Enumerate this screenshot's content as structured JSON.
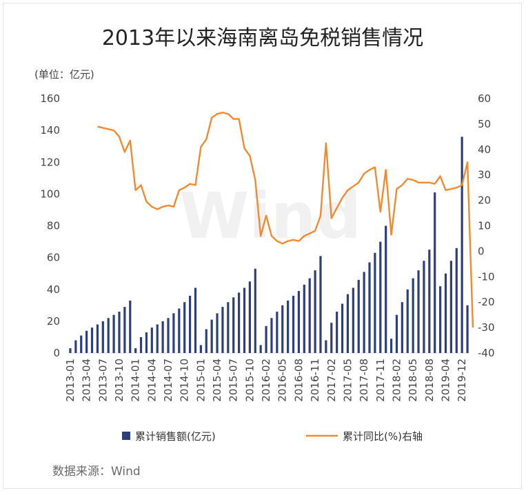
{
  "chart_data": {
    "type": "bar+line",
    "title": "2013年以来海南离岛免税销售情况",
    "unit_label": "(单位：亿元)",
    "source": "数据来源：Wind",
    "watermark": "Wind",
    "x_tick_labels": [
      "2013-01",
      "2013-04",
      "2013-07",
      "2013-10",
      "2014-01",
      "2014-04",
      "2014-07",
      "2014-10",
      "2015-01",
      "2015-04",
      "2015-07",
      "2015-10",
      "2016-02",
      "2016-05",
      "2016-08",
      "2016-11",
      "2017-02",
      "2017-05",
      "2017-08",
      "2017-11",
      "2018-02",
      "2018-05",
      "2018-08",
      "2019-04",
      "2019-12"
    ],
    "y_left": {
      "range": [
        0,
        160
      ],
      "ticks": [
        0,
        20,
        40,
        60,
        80,
        100,
        120,
        140,
        160
      ]
    },
    "y_right": {
      "range": [
        -40,
        60
      ],
      "ticks": [
        60,
        50,
        40,
        30,
        20,
        10,
        0,
        -10,
        -20,
        -30,
        -40
      ]
    },
    "colors": {
      "bar": "#2e3e7a",
      "line": "#f0892f"
    },
    "series": [
      {
        "name": "累计销售额(亿元)",
        "type": "bar",
        "axis": "left",
        "values": [
          3,
          8,
          11,
          14,
          16,
          18,
          20,
          22,
          24,
          26,
          29,
          33,
          3,
          10,
          13,
          16,
          18,
          20,
          22,
          25,
          28,
          32,
          36,
          41,
          5,
          15,
          21,
          25,
          29,
          32,
          35,
          38,
          41,
          45,
          53,
          5,
          17,
          22,
          26,
          30,
          33,
          36,
          39,
          43,
          47,
          52,
          61,
          8,
          19,
          26,
          31,
          37,
          41,
          46,
          51,
          57,
          63,
          70,
          80,
          9,
          24,
          32,
          40,
          47,
          52,
          58,
          65,
          101,
          42,
          50,
          58,
          66,
          136,
          30
        ]
      },
      {
        "name": "累计同比(%)右轴",
        "type": "line",
        "axis": "right",
        "values": [
          null,
          null,
          null,
          null,
          null,
          49,
          48.5,
          48,
          47.5,
          45,
          39,
          43.5,
          24,
          26,
          19.5,
          17.5,
          16.5,
          17.5,
          18,
          17.5,
          24,
          25,
          26.5,
          26,
          41,
          44,
          52.5,
          54,
          54.5,
          54,
          52,
          52,
          40.5,
          37.5,
          28,
          6,
          14,
          6,
          4,
          3,
          4,
          4.5,
          4,
          6,
          7,
          8,
          14,
          42.5,
          13,
          17,
          21,
          24,
          25.5,
          27,
          30.5,
          32,
          33,
          15.5,
          32,
          6.5,
          24.5,
          26,
          28.5,
          28,
          27,
          27,
          27,
          26.5,
          29.5,
          24,
          24.5,
          25,
          26,
          35,
          -30
        ]
      }
    ]
  },
  "legend": {
    "bar_label": "累计销售额(亿元)",
    "line_label": "累计同比(%)右轴"
  }
}
